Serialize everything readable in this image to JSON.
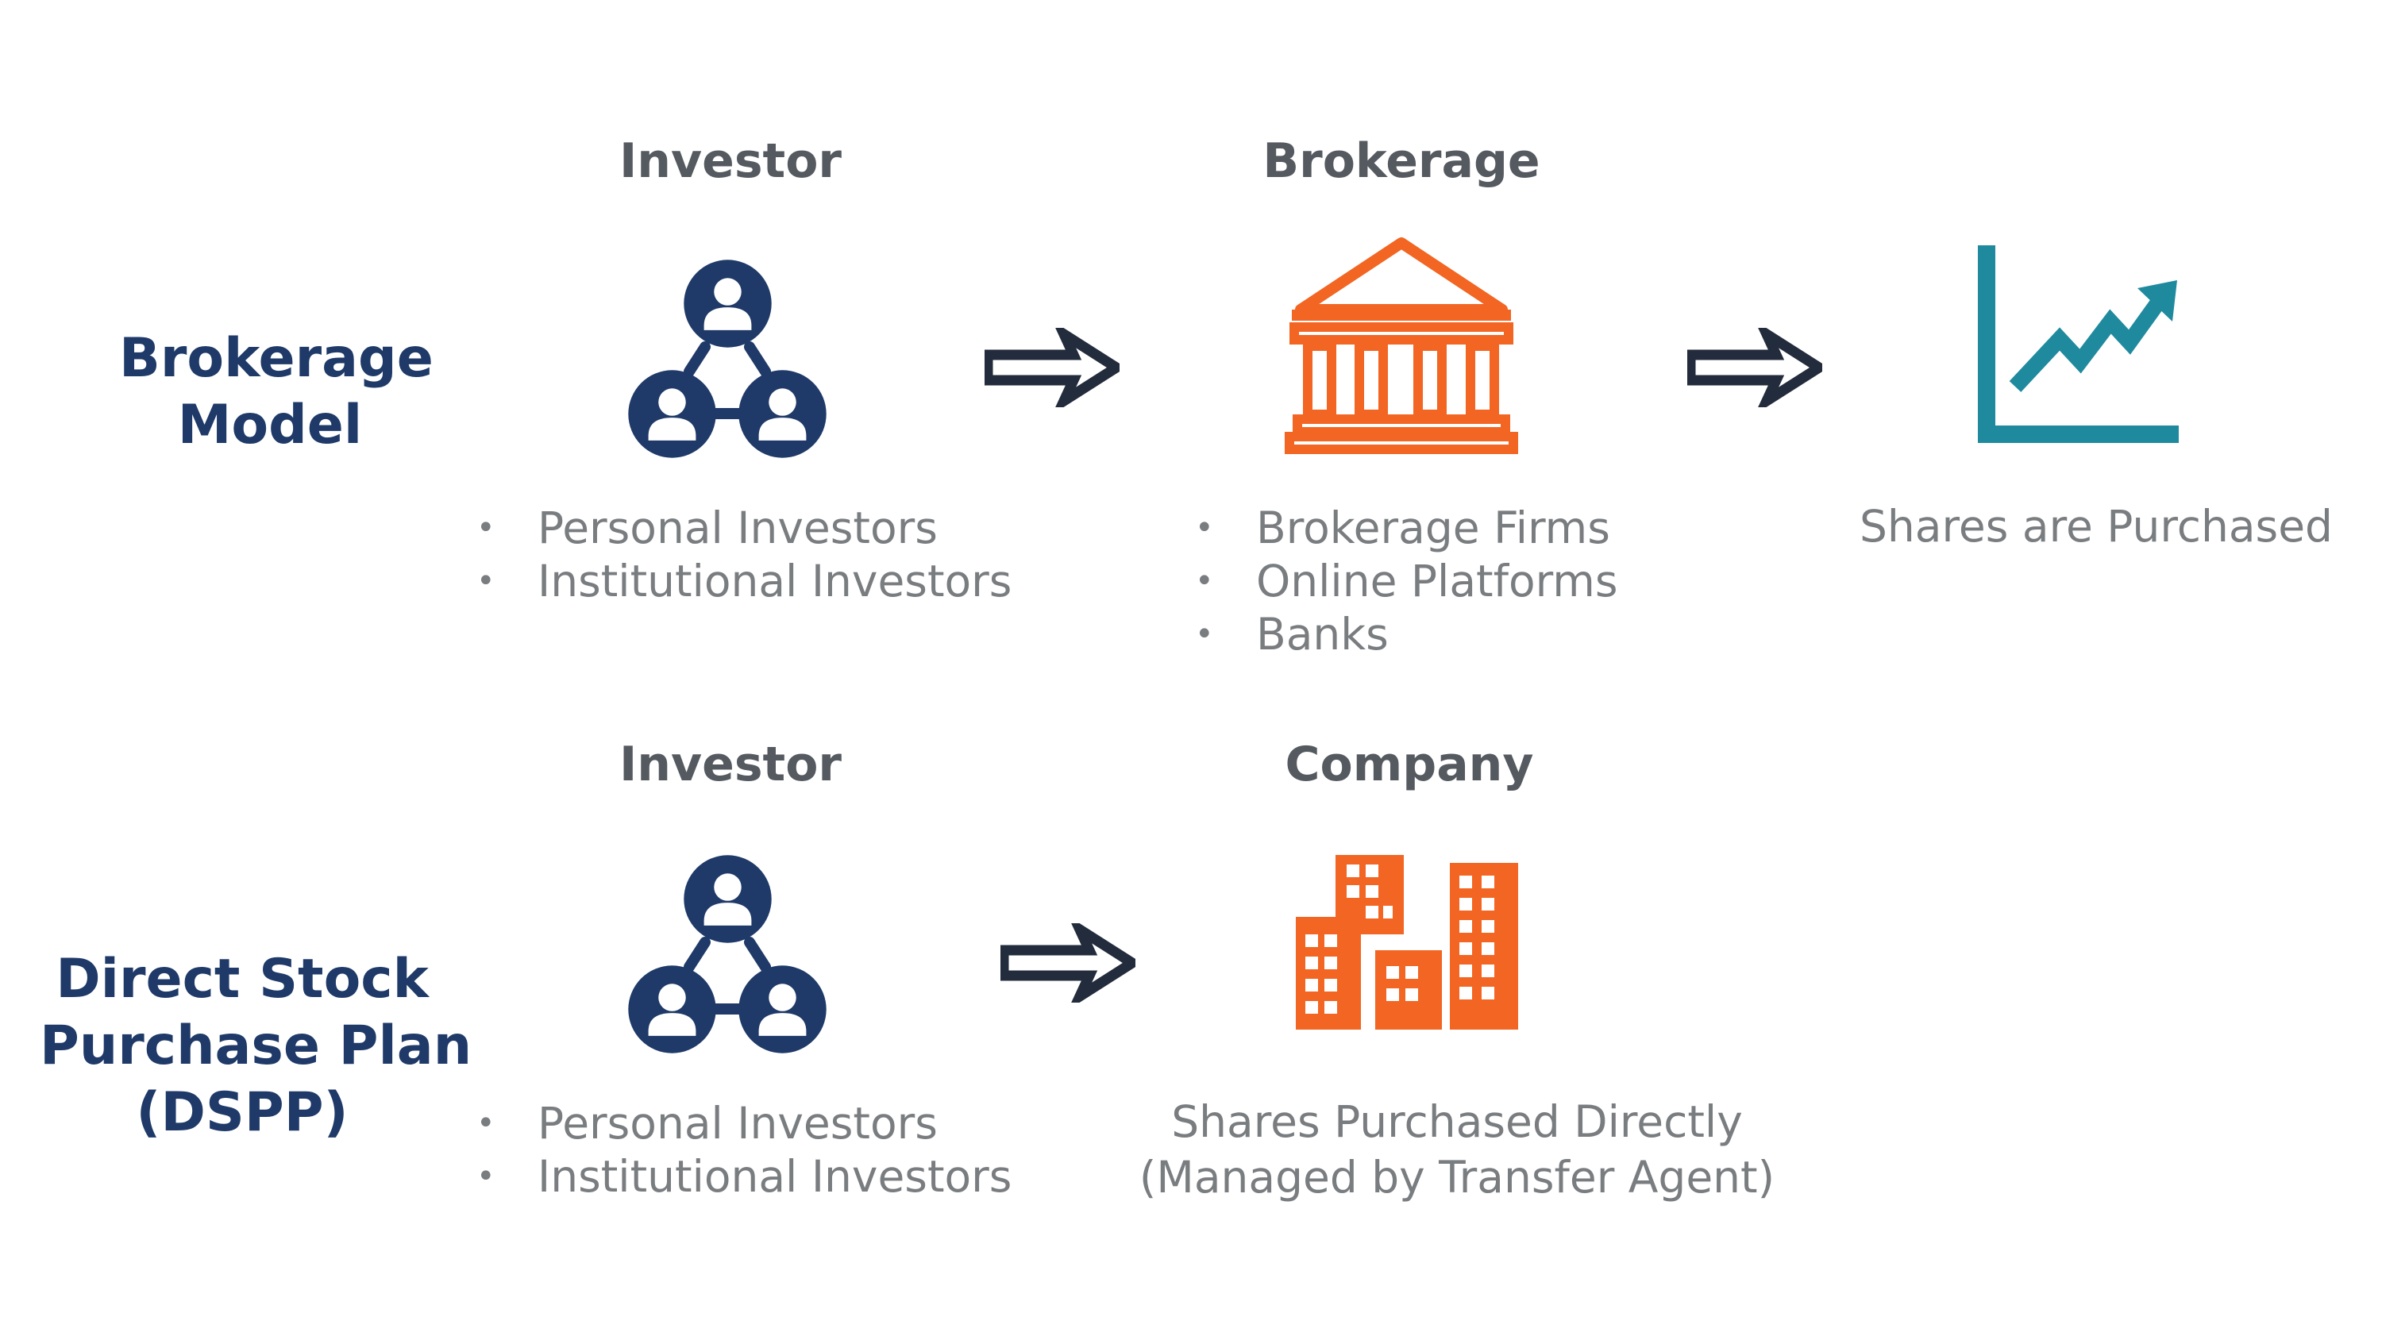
{
  "colors": {
    "navy": "#1f3a68",
    "arrow": "#232c3c",
    "orange": "#f26522",
    "teal": "#1f8a9e",
    "title_gray": "#555a60",
    "text_gray": "#7a7d80"
  },
  "brokerage_model": {
    "label_line1": "Brokerage",
    "label_line2": "Model",
    "investor": {
      "title": "Investor",
      "icon": "investor-network-icon",
      "items": [
        "Personal Investors",
        "Institutional Investors"
      ]
    },
    "brokerage": {
      "title": "Brokerage",
      "icon": "bank-icon",
      "items": [
        "Brokerage Firms",
        "Online Platforms",
        "Banks"
      ]
    },
    "result": {
      "icon": "growth-chart-icon",
      "text": "Shares are Purchased"
    }
  },
  "dspp": {
    "label_line1": "Direct Stock",
    "label_line2": "Purchase Plan",
    "label_line3": "(DSPP)",
    "investor": {
      "title": "Investor",
      "icon": "investor-network-icon",
      "items": [
        "Personal Investors",
        "Institutional Investors"
      ]
    },
    "company": {
      "title": "Company",
      "icon": "buildings-icon",
      "text_line1": "Shares Purchased Directly",
      "text_line2": "(Managed by Transfer Agent)"
    }
  }
}
